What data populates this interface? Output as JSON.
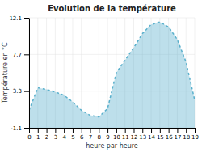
{
  "chart_data": {
    "type": "area",
    "title": "Evolution de la température",
    "xlabel": "heure par heure",
    "ylabel": "Température en °C",
    "x": [
      0,
      1,
      2,
      3,
      4,
      5,
      6,
      7,
      8,
      9,
      10,
      11,
      12,
      13,
      14,
      15,
      16,
      17,
      18,
      19
    ],
    "values": [
      1.0,
      3.7,
      3.5,
      3.2,
      2.8,
      2.0,
      1.0,
      0.4,
      0.2,
      1.2,
      5.5,
      7.0,
      8.5,
      10.2,
      11.3,
      11.6,
      11.0,
      9.5,
      6.8,
      2.2
    ],
    "color": "#5ab0cc",
    "line_style": "dashed",
    "xlim": [
      0,
      19
    ],
    "ylim": [
      -1.1,
      12.1
    ],
    "xticks": [
      0,
      1,
      2,
      3,
      4,
      5,
      6,
      7,
      8,
      9,
      10,
      11,
      12,
      13,
      14,
      15,
      16,
      17,
      18,
      19
    ],
    "yticks": [
      -1.1,
      3.3,
      7.7,
      12.1
    ],
    "grid": true
  }
}
